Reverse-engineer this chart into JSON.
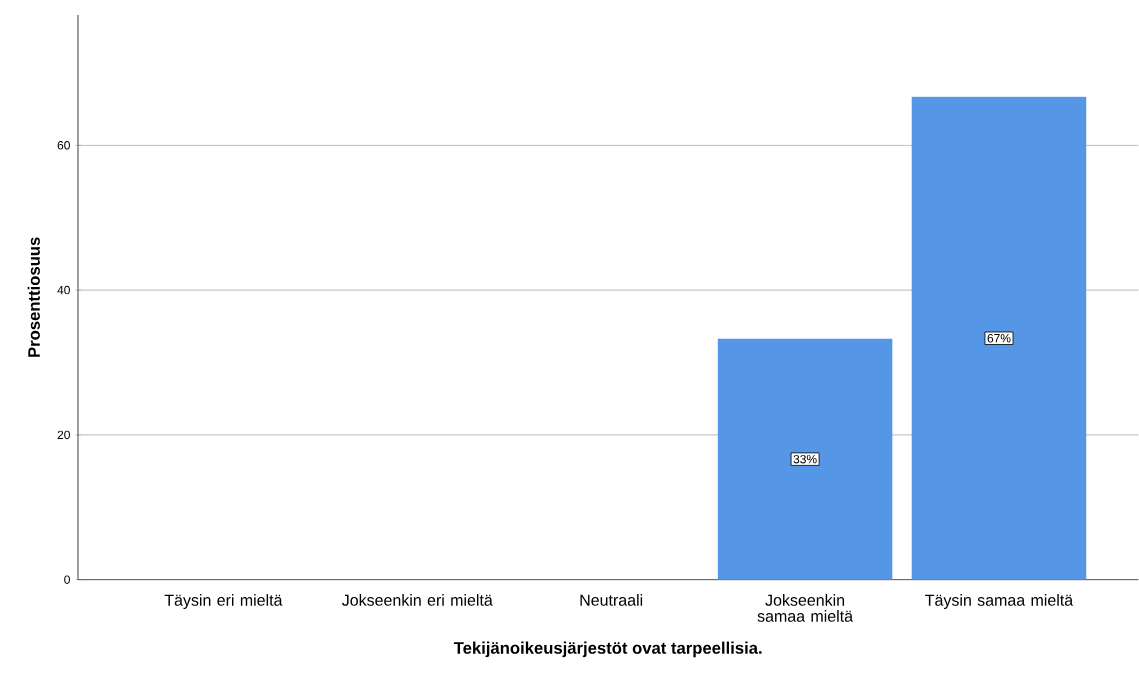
{
  "chart_data": {
    "type": "bar",
    "xlabel": "Tekijänoikeusjärjestöt ovat tarpeellisia.",
    "ylabel": "Prosenttiosuus",
    "categories": [
      "Täysin eri mieltä",
      "Jokseenkin eri mieltä",
      "Neutraali",
      "Jokseenkin samaa mieltä",
      "Täysin samaa mieltä"
    ],
    "values": [
      null,
      null,
      null,
      33.3,
      66.7
    ],
    "value_labels": [
      null,
      null,
      null,
      "33%",
      "67%"
    ],
    "color": "#5596e6",
    "ylim": [
      0,
      78
    ],
    "yticks": [
      0,
      20,
      40,
      60
    ],
    "grid": "y"
  }
}
